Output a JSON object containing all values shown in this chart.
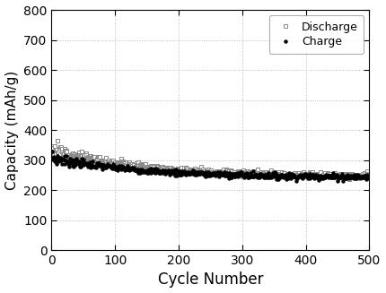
{
  "title": "",
  "xlabel": "Cycle Number",
  "ylabel": "Capacity (mAh/g)",
  "xlim": [
    0,
    500
  ],
  "ylim": [
    0,
    800
  ],
  "xticks": [
    0,
    100,
    200,
    300,
    400,
    500
  ],
  "yticks": [
    0,
    100,
    200,
    300,
    400,
    500,
    600,
    700,
    800
  ],
  "charge_color": "#000000",
  "discharge_edge_color": "#888888",
  "discharge_face_color": "#ffffff",
  "legend_labels": [
    "Charge",
    "Discharge"
  ],
  "grid_color": "#bbbbbb",
  "grid_style": "dotted",
  "n_cycles": 500,
  "start_capacity_charge": 308,
  "start_capacity_discharge": 340,
  "end_capacity_charge": 242,
  "end_capacity_discharge": 245,
  "noise_amplitude": 5,
  "marker_size_charge": 2.2,
  "marker_size_discharge": 3.5,
  "xlabel_fontsize": 12,
  "ylabel_fontsize": 11,
  "tick_fontsize": 10,
  "legend_fontsize": 9
}
